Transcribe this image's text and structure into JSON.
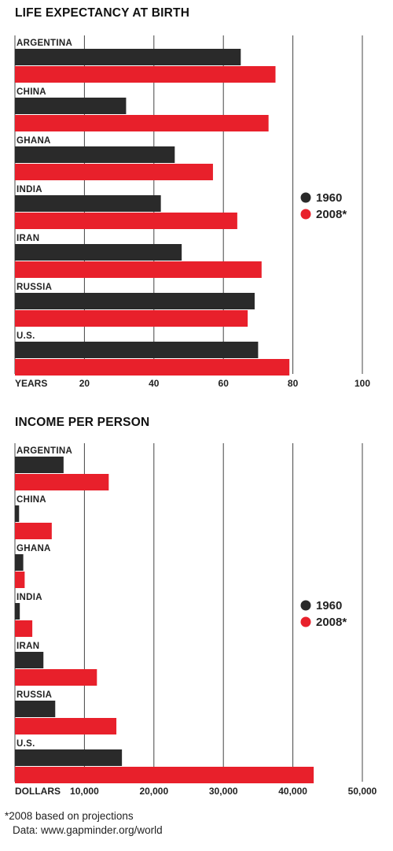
{
  "colors": {
    "series_1960": "#2a2a2a",
    "series_2008": "#e8202b",
    "grid": "#444444"
  },
  "footnote": {
    "projection_note": "*2008 based on projections",
    "source": "Data: www.gapminder.org/world"
  },
  "chart_data": [
    {
      "type": "bar",
      "orientation": "horizontal",
      "title": "LIFE EXPECTANCY AT BIRTH",
      "xlabel": "YEARS",
      "categories": [
        "ARGENTINA",
        "CHINA",
        "GHANA",
        "INDIA",
        "IRAN",
        "RUSSIA",
        "U.S."
      ],
      "series": [
        {
          "name": "1960",
          "values": [
            65,
            32,
            46,
            42,
            48,
            69,
            70
          ]
        },
        {
          "name": "2008*",
          "values": [
            75,
            73,
            57,
            64,
            71,
            67,
            79
          ]
        }
      ],
      "xlim": [
        0,
        100
      ],
      "ticks": [
        20,
        40,
        60,
        80,
        100
      ],
      "tick_labels": [
        "20",
        "40",
        "60",
        "80",
        "100"
      ],
      "grid": true,
      "legend_position": "right"
    },
    {
      "type": "bar",
      "orientation": "horizontal",
      "title": "INCOME PER PERSON",
      "xlabel": "DOLLARS",
      "categories": [
        "ARGENTINA",
        "CHINA",
        "GHANA",
        "INDIA",
        "IRAN",
        "RUSSIA",
        "U.S."
      ],
      "series": [
        {
          "name": "1960",
          "values": [
            7000,
            600,
            1200,
            700,
            4100,
            5800,
            15400
          ]
        },
        {
          "name": "2008*",
          "values": [
            13500,
            5300,
            1400,
            2500,
            11800,
            14600,
            43000
          ]
        }
      ],
      "xlim": [
        0,
        50000
      ],
      "ticks": [
        10000,
        20000,
        30000,
        40000,
        50000
      ],
      "tick_labels": [
        "10,000",
        "20,000",
        "30,000",
        "40,000",
        "50,000"
      ],
      "grid": true,
      "legend_position": "right"
    }
  ]
}
